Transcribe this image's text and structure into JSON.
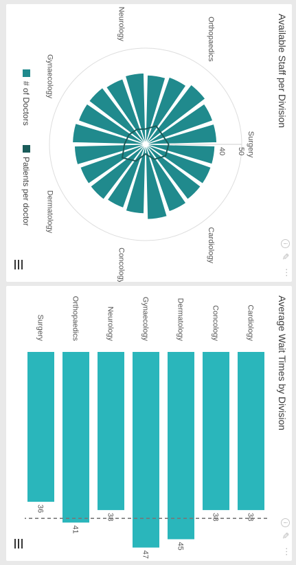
{
  "radar_panel": {
    "title": "Available Staff per Division",
    "legend": [
      {
        "label": "# of Doctors",
        "color": "#208a8d"
      },
      {
        "label": "Patients per doctor",
        "color": "#1a5c5a"
      }
    ]
  },
  "bar_panel": {
    "title": "Average Wait Times by Division"
  },
  "icons": [
    "info-icon",
    "pencil-icon",
    "more-icon",
    "menu-icon"
  ],
  "chart_data": [
    {
      "type": "radar",
      "title": "Available Staff per Division",
      "category_labels": [
        "Surgery",
        "Cardiology",
        "Concology",
        "Dermatology",
        "Gynaecology",
        "Neurology",
        "Orthopaedics"
      ],
      "ticks": [
        40,
        50
      ],
      "rmax": 50,
      "series": [
        {
          "name": "# of Doctors",
          "kind": "bars",
          "color": "#208a8d",
          "values": [
            36,
            36,
            36,
            37,
            39,
            36,
            35,
            36,
            36,
            37,
            38,
            37,
            37,
            36,
            37,
            36,
            37,
            39,
            37,
            37
          ]
        },
        {
          "name": "Patients per doctor",
          "kind": "line",
          "color": "#1a5c5a",
          "values": [
            12,
            12,
            9,
            5,
            10,
            14,
            11,
            10,
            9,
            8,
            11,
            10
          ]
        }
      ]
    },
    {
      "type": "bar",
      "title": "Average Wait Times by Division",
      "categories": [
        "Cardiology",
        "Concology",
        "Dermatology",
        "Gynaecology",
        "Neurology",
        "Orthopaedics",
        "Surgery"
      ],
      "values": [
        38,
        38,
        45,
        47,
        38,
        41,
        36
      ],
      "reference_line": 40,
      "color": "#2ab6bb"
    }
  ]
}
